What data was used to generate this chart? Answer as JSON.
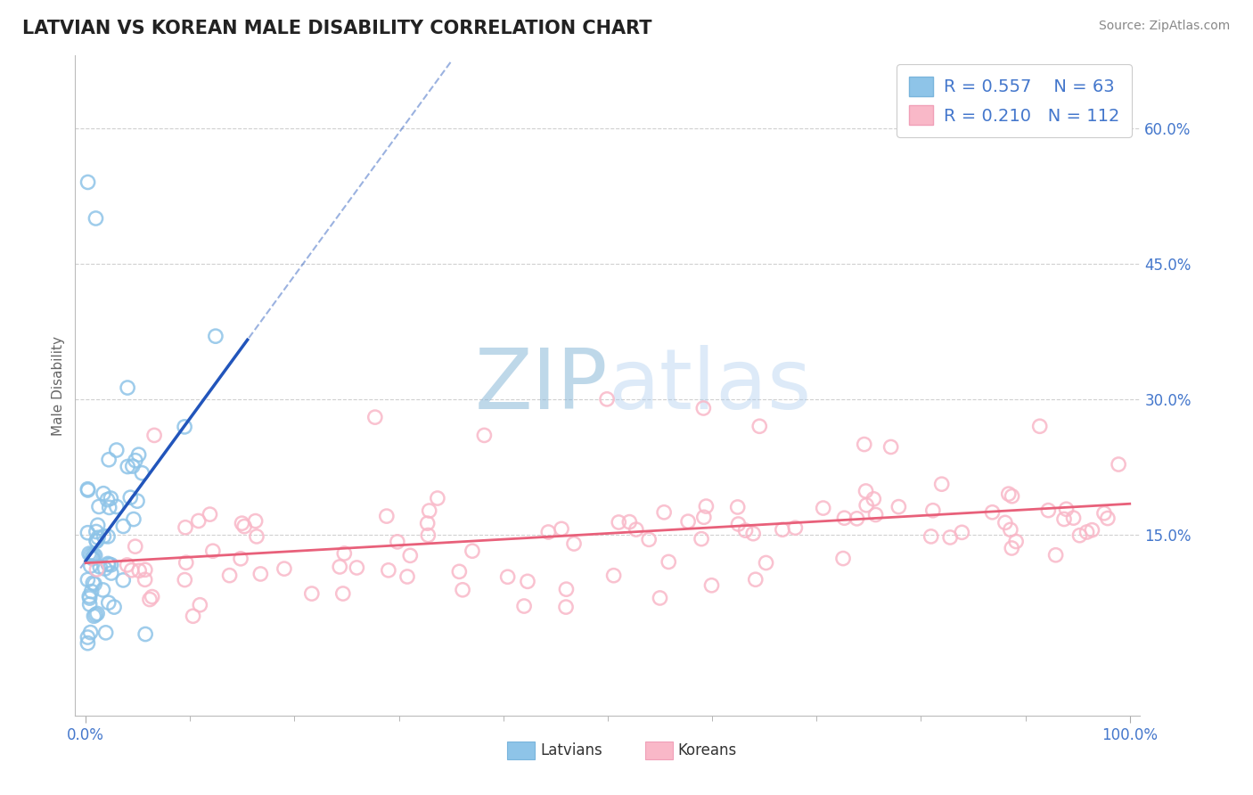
{
  "title": "LATVIAN VS KOREAN MALE DISABILITY CORRELATION CHART",
  "source_text": "Source: ZipAtlas.com",
  "ylabel": "Male Disability",
  "xlim": [
    -0.01,
    1.01
  ],
  "ylim": [
    -0.05,
    0.68
  ],
  "xtick_labels": [
    "0.0%",
    "100.0%"
  ],
  "xtick_positions": [
    0.0,
    1.0
  ],
  "ytick_labels": [
    "15.0%",
    "30.0%",
    "45.0%",
    "60.0%"
  ],
  "ytick_positions": [
    0.15,
    0.3,
    0.45,
    0.6
  ],
  "latvian_color": "#8ec4e8",
  "latvian_edge_color": "#7ab5dc",
  "korean_color": "#f9b8c8",
  "korean_edge_color": "#f0a0b8",
  "latvian_line_color": "#2255bb",
  "korean_line_color": "#e8607a",
  "latvian_R": 0.557,
  "latvian_N": 63,
  "korean_R": 0.21,
  "korean_N": 112,
  "legend_text_color": "#4477cc",
  "background_color": "#ffffff",
  "grid_color": "#d0d0d0",
  "watermark_zip_color": "#8ab8d8",
  "watermark_atlas_color": "#aaccee",
  "title_color": "#222222",
  "source_color": "#888888",
  "tick_color": "#4477cc",
  "bottom_legend_label_color": "#333333"
}
